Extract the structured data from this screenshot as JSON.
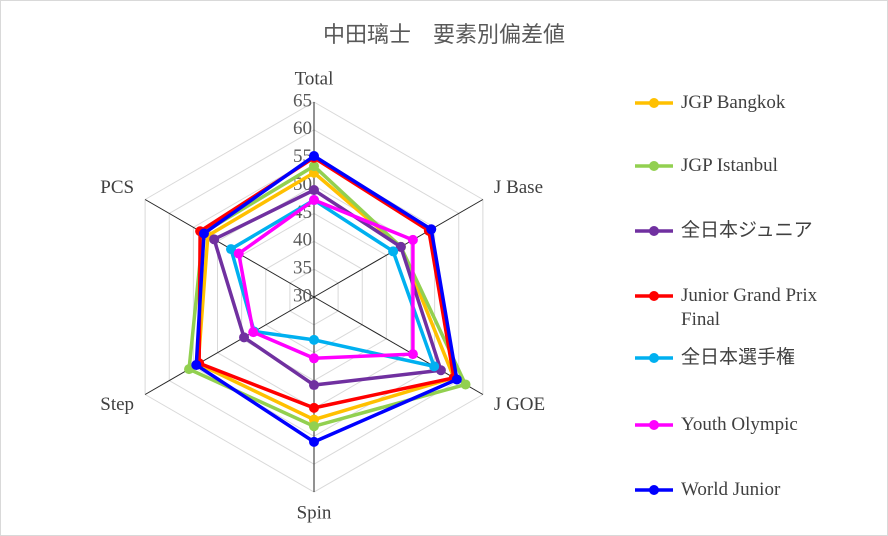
{
  "chart_data": {
    "type": "radar",
    "title": "中田璃士　要素別偏差値",
    "categories": [
      "Total",
      "J Base",
      "J GOE",
      "Spin",
      "Step",
      "PCS"
    ],
    "ylim": [
      30,
      65
    ],
    "yticks": [
      30,
      35,
      40,
      45,
      50,
      55,
      60,
      65
    ],
    "grid": true,
    "series": [
      {
        "name": "JGP Bangkok",
        "color": "#FFC000",
        "values": [
          52.3,
          48,
          59,
          52,
          54,
          52
        ]
      },
      {
        "name": "JGP Istanbul",
        "color": "#92D050",
        "values": [
          53.5,
          48,
          61.4,
          53.2,
          55.9,
          53
        ]
      },
      {
        "name": "全日本ジュニア",
        "color": "#7030A0",
        "values": [
          49.2,
          48,
          56.3,
          45.8,
          44.5,
          50.7
        ]
      },
      {
        "name": "Junior Grand Prix Final",
        "color": "#FF0000",
        "values": [
          55,
          53.8,
          59,
          49.9,
          53.8,
          53.6
        ]
      },
      {
        "name": "全日本選手権",
        "color": "#00B0F0",
        "values": [
          47.4,
          46.4,
          54.9,
          37.7,
          42.4,
          47.2
        ]
      },
      {
        "name": "Youth Olympic",
        "color": "#FF00FF",
        "values": [
          47.4,
          50.5,
          50.5,
          41,
          42.6,
          45.6
        ]
      },
      {
        "name": "World Junior",
        "color": "#0000FF",
        "values": [
          55.3,
          54.3,
          59.6,
          56,
          54.4,
          52.8
        ]
      }
    ]
  }
}
